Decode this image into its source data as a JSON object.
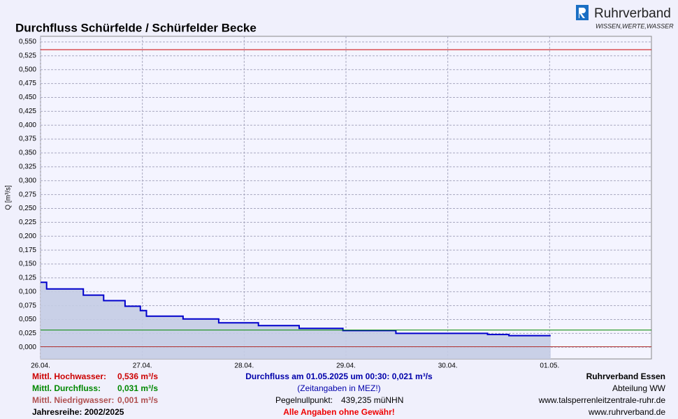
{
  "chart_data": {
    "type": "line",
    "title": "Durchfluss Schürfelde / Schürfelder Becke",
    "logo": {
      "name": "Ruhrverband",
      "slogan": "WISSEN,WERTE,WASSER"
    },
    "y_label": "Q [m³/s]",
    "grid": true,
    "xlim": [
      0,
      6
    ],
    "xticks": [
      {
        "value": 0,
        "label": "26.04."
      },
      {
        "value": 1,
        "label": "27.04."
      },
      {
        "value": 2,
        "label": "28.04."
      },
      {
        "value": 3,
        "label": "29.04."
      },
      {
        "value": 4,
        "label": "30.04."
      },
      {
        "value": 5,
        "label": "01.05."
      }
    ],
    "ylim": [
      -0.021,
      0.56
    ],
    "yticks": [
      {
        "value": 0,
        "label": "0,000"
      },
      {
        "value": 0.025,
        "label": "0,025"
      },
      {
        "value": 0.05,
        "label": "0,050"
      },
      {
        "value": 0.075,
        "label": "0,075"
      },
      {
        "value": 0.1,
        "label": "0,100"
      },
      {
        "value": 0.125,
        "label": "0,125"
      },
      {
        "value": 0.15,
        "label": "0,150"
      },
      {
        "value": 0.175,
        "label": "0,175"
      },
      {
        "value": 0.2,
        "label": "0,200"
      },
      {
        "value": 0.225,
        "label": "0,225"
      },
      {
        "value": 0.25,
        "label": "0,250"
      },
      {
        "value": 0.275,
        "label": "0,275"
      },
      {
        "value": 0.3,
        "label": "0,300"
      },
      {
        "value": 0.325,
        "label": "0,325"
      },
      {
        "value": 0.35,
        "label": "0,350"
      },
      {
        "value": 0.375,
        "label": "0,375"
      },
      {
        "value": 0.4,
        "label": "0,400"
      },
      {
        "value": 0.425,
        "label": "0,425"
      },
      {
        "value": 0.45,
        "label": "0,450"
      },
      {
        "value": 0.475,
        "label": "0,475"
      },
      {
        "value": 0.5,
        "label": "0,500"
      },
      {
        "value": 0.525,
        "label": "0,525"
      },
      {
        "value": 0.55,
        "label": "0,550"
      }
    ],
    "series": [
      {
        "color": "#0000cc",
        "fill": "#c4cce4",
        "x": [
          0,
          0.06,
          0.06,
          0.42,
          0.42,
          0.62,
          0.62,
          0.83,
          0.83,
          0.98,
          0.98,
          1.04,
          1.04,
          1.4,
          1.4,
          1.75,
          1.75,
          2.14,
          2.14,
          2.54,
          2.54,
          2.97,
          2.97,
          3.49,
          3.49,
          4.39,
          4.39,
          4.6,
          4.6,
          5.01
        ],
        "values": [
          0.117,
          0.117,
          0.105,
          0.105,
          0.094,
          0.094,
          0.084,
          0.084,
          0.074,
          0.074,
          0.066,
          0.066,
          0.056,
          0.056,
          0.051,
          0.051,
          0.044,
          0.044,
          0.039,
          0.039,
          0.034,
          0.034,
          0.03,
          0.03,
          0.025,
          0.025,
          0.023,
          0.023,
          0.021,
          0.021
        ]
      }
    ],
    "reference_lines": [
      {
        "name": "Mittl. Hochwasser:",
        "value": 0.536,
        "value_label": "0,536 m³/s",
        "color": "#cc0000",
        "label_color": "#cc0000"
      },
      {
        "name": "Mittl. Durchfluss:",
        "value": 0.031,
        "value_label": "0,031 m³/s",
        "color": "#008800",
        "label_color": "#008800"
      },
      {
        "name": "Mittl. Niedrigwasser:",
        "value": 0.001,
        "value_label": "0,001 m³/s",
        "color": "#b03030",
        "label_color": "#b05050"
      }
    ],
    "series_period": "Jahresreihe: 2002/2025",
    "current": "Durchfluss am 01.05.2025 um 00:30: 0,021 m³/s",
    "timezone_note": "(Zeitangaben in MEZ!)",
    "datum_label": "Pegelnullpunkt:",
    "datum_value": "439,235 müNHN",
    "disclaimer": "Alle Angaben ohne Gewähr!",
    "credits": [
      "Ruhrverband Essen",
      "Abteilung WW",
      "www.talsperrenleitzentrale-ruhr.de",
      "www.ruhrverband.de"
    ]
  }
}
